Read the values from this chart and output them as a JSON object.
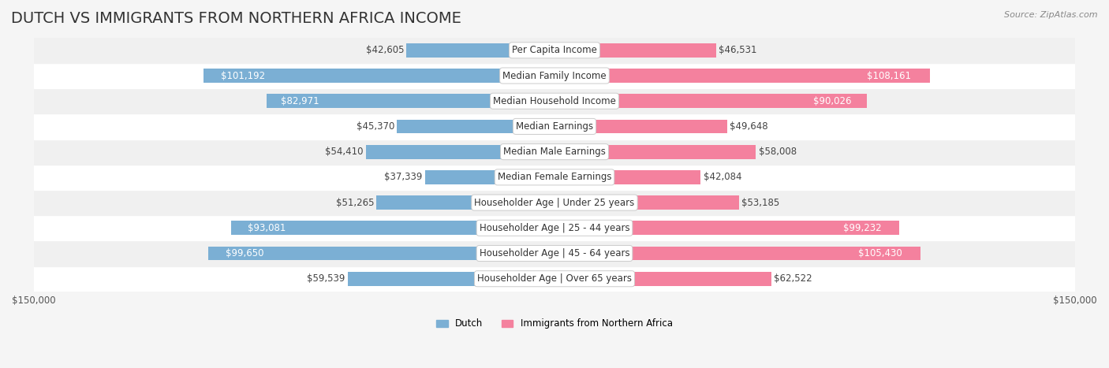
{
  "title": "DUTCH VS IMMIGRANTS FROM NORTHERN AFRICA INCOME",
  "source": "Source: ZipAtlas.com",
  "categories": [
    "Per Capita Income",
    "Median Family Income",
    "Median Household Income",
    "Median Earnings",
    "Median Male Earnings",
    "Median Female Earnings",
    "Householder Age | Under 25 years",
    "Householder Age | 25 - 44 years",
    "Householder Age | 45 - 64 years",
    "Householder Age | Over 65 years"
  ],
  "dutch_values": [
    42605,
    101192,
    82971,
    45370,
    54410,
    37339,
    51265,
    93081,
    99650,
    59539
  ],
  "immigrant_values": [
    46531,
    108161,
    90026,
    49648,
    58008,
    42084,
    53185,
    99232,
    105430,
    62522
  ],
  "dutch_labels": [
    "$42,605",
    "$101,192",
    "$82,971",
    "$45,370",
    "$54,410",
    "$37,339",
    "$51,265",
    "$93,081",
    "$99,650",
    "$59,539"
  ],
  "immigrant_labels": [
    "$46,531",
    "$108,161",
    "$90,026",
    "$49,648",
    "$58,008",
    "$42,084",
    "$53,185",
    "$99,232",
    "$105,430",
    "$62,522"
  ],
  "dutch_color": "#7bafd4",
  "immigrant_color": "#f4819e",
  "dutch_label_dark": "#555555",
  "immigrant_label_dark": "#555555",
  "max_value": 150000,
  "x_tick_label_left": "$150,000",
  "x_tick_label_right": "$150,000",
  "legend_dutch": "Dutch",
  "legend_immigrant": "Immigrants from Northern Africa",
  "bg_color": "#f5f5f5",
  "row_bg_color": "#ffffff",
  "row_alt_bg_color": "#f0f0f0",
  "bar_height": 0.55,
  "title_fontsize": 14,
  "label_fontsize": 8.5,
  "category_fontsize": 8.5,
  "tick_fontsize": 8.5
}
